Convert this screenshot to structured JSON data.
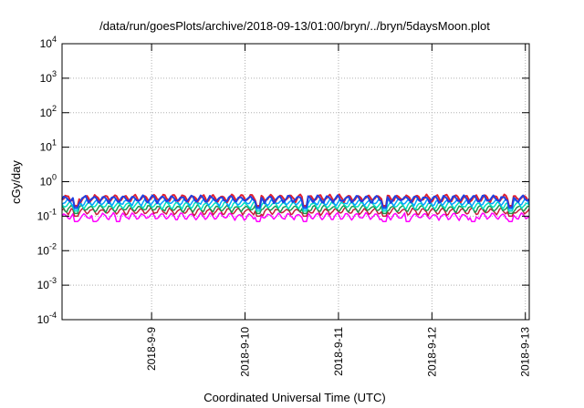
{
  "chart_data": {
    "type": "line",
    "title": "/data/run/goesPlots/archive/2018-09-13/01:00/bryn/../bryn/5daysMoon.plot",
    "xlabel": "Coordinated Universal Time (UTC)",
    "ylabel": "cGy/day",
    "y_scale": "log",
    "ylim": [
      0.0001,
      10000
    ],
    "y_ticks": [
      {
        "base": "10",
        "exp": "-4"
      },
      {
        "base": "10",
        "exp": "-3"
      },
      {
        "base": "10",
        "exp": "-2"
      },
      {
        "base": "10",
        "exp": "-1"
      },
      {
        "base": "10",
        "exp": "0"
      },
      {
        "base": "10",
        "exp": "1"
      },
      {
        "base": "10",
        "exp": "2"
      },
      {
        "base": "10",
        "exp": "3"
      },
      {
        "base": "10",
        "exp": "4"
      }
    ],
    "xlim": [
      "2018-09-08T01:00",
      "2018-09-13T01:00"
    ],
    "x_ticks": [
      "2018-9-9",
      "2018-9-10",
      "2018-9-11",
      "2018-9-12",
      "2018-9-13"
    ],
    "x_tick_dates": [
      "2018-09-09T00:00",
      "2018-09-10T00:00",
      "2018-09-11T00:00",
      "2018-09-12T00:00",
      "2018-09-13T00:00"
    ],
    "grid": true,
    "legend": "none",
    "series": [
      {
        "color": "#ff00ff",
        "level": 0.1,
        "dips": [
          0.03,
          0.12,
          0.07,
          0.42,
          0.52,
          0.69,
          0.74,
          0.88,
          0.96
        ],
        "dip_value": 0.07
      },
      {
        "color": "#c81e3c",
        "level": 0.14,
        "dips": [
          0.03,
          0.42,
          0.52,
          0.69,
          0.96
        ],
        "dip_value": 0.1
      },
      {
        "color": "#1e9650",
        "level": 0.17,
        "dips": [
          0.03,
          0.42,
          0.52,
          0.69,
          0.96
        ],
        "dip_value": 0.12
      },
      {
        "color": "#00e0c0",
        "level": 0.21,
        "dips": [
          0.03,
          0.42,
          0.52,
          0.69,
          0.96
        ],
        "dip_value": 0.14
      },
      {
        "color": "#00a0ff",
        "level": 0.26,
        "dips": [
          0.03,
          0.42,
          0.52,
          0.69,
          0.96
        ],
        "dip_value": 0.16
      },
      {
        "color": "#e02030",
        "level": 0.34,
        "dips": [
          0.03,
          0.42,
          0.52,
          0.69,
          0.96
        ],
        "dip_value": 0.2
      },
      {
        "color": "#2040e0",
        "level": 0.32,
        "dips": [
          0.03,
          0.42,
          0.52,
          0.69,
          0.96
        ],
        "dip_value": 0.18
      }
    ]
  }
}
